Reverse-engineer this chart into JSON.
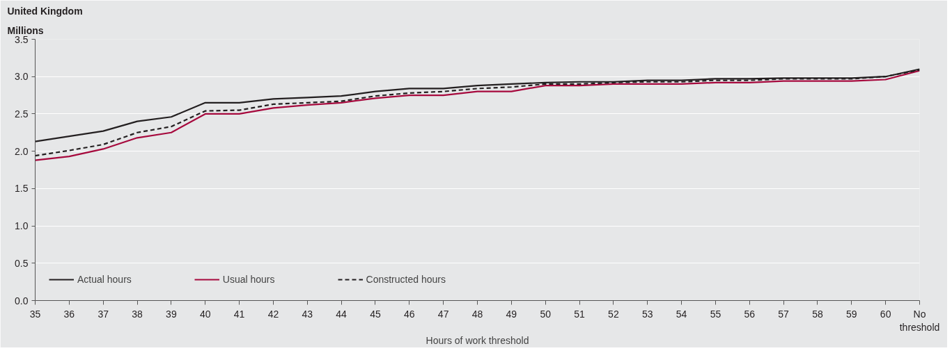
{
  "chart_data": {
    "type": "line",
    "title": "United Kingdom",
    "ylabel": "Millions",
    "xlabel": "Hours of work threshold",
    "categories": [
      "35",
      "36",
      "37",
      "38",
      "39",
      "40",
      "41",
      "42",
      "43",
      "44",
      "45",
      "46",
      "47",
      "48",
      "49",
      "50",
      "51",
      "52",
      "53",
      "54",
      "55",
      "56",
      "57",
      "58",
      "59",
      "60",
      "No threshold"
    ],
    "series": [
      {
        "name": "Actual hours",
        "color": "#231f20",
        "line_style": "solid",
        "values": [
          2.13,
          2.2,
          2.27,
          2.4,
          2.46,
          2.65,
          2.65,
          2.7,
          2.72,
          2.74,
          2.8,
          2.84,
          2.84,
          2.88,
          2.9,
          2.92,
          2.93,
          2.93,
          2.95,
          2.95,
          2.97,
          2.97,
          2.98,
          2.98,
          2.98,
          3.0,
          3.1
        ]
      },
      {
        "name": "Usual hours",
        "color": "#a6093d",
        "line_style": "solid",
        "values": [
          1.88,
          1.93,
          2.03,
          2.18,
          2.25,
          2.5,
          2.5,
          2.58,
          2.62,
          2.65,
          2.71,
          2.75,
          2.75,
          2.8,
          2.8,
          2.88,
          2.88,
          2.9,
          2.9,
          2.9,
          2.92,
          2.92,
          2.94,
          2.94,
          2.94,
          2.96,
          3.08
        ]
      },
      {
        "name": "Constructed hours",
        "color": "#231f20",
        "line_style": "dashed",
        "values": [
          1.94,
          2.01,
          2.09,
          2.25,
          2.33,
          2.54,
          2.55,
          2.63,
          2.65,
          2.67,
          2.74,
          2.78,
          2.8,
          2.84,
          2.86,
          2.9,
          2.9,
          2.92,
          2.93,
          2.93,
          2.95,
          2.95,
          2.97,
          2.97,
          2.97,
          3.0,
          3.09
        ]
      }
    ],
    "ylim": [
      0,
      3.5
    ],
    "yticks": [
      {
        "value": 0,
        "label": "0.0"
      },
      {
        "value": 0.5,
        "label": "0.5"
      },
      {
        "value": 1,
        "label": "1.0"
      },
      {
        "value": 1.5,
        "label": "1.5"
      },
      {
        "value": 2,
        "label": "2.0"
      },
      {
        "value": 2.5,
        "label": "2.5"
      },
      {
        "value": 3,
        "label": "3.0"
      },
      {
        "value": 3.5,
        "label": "3.5"
      }
    ],
    "grid": "y",
    "legend": "bottom left",
    "marker": "none"
  }
}
